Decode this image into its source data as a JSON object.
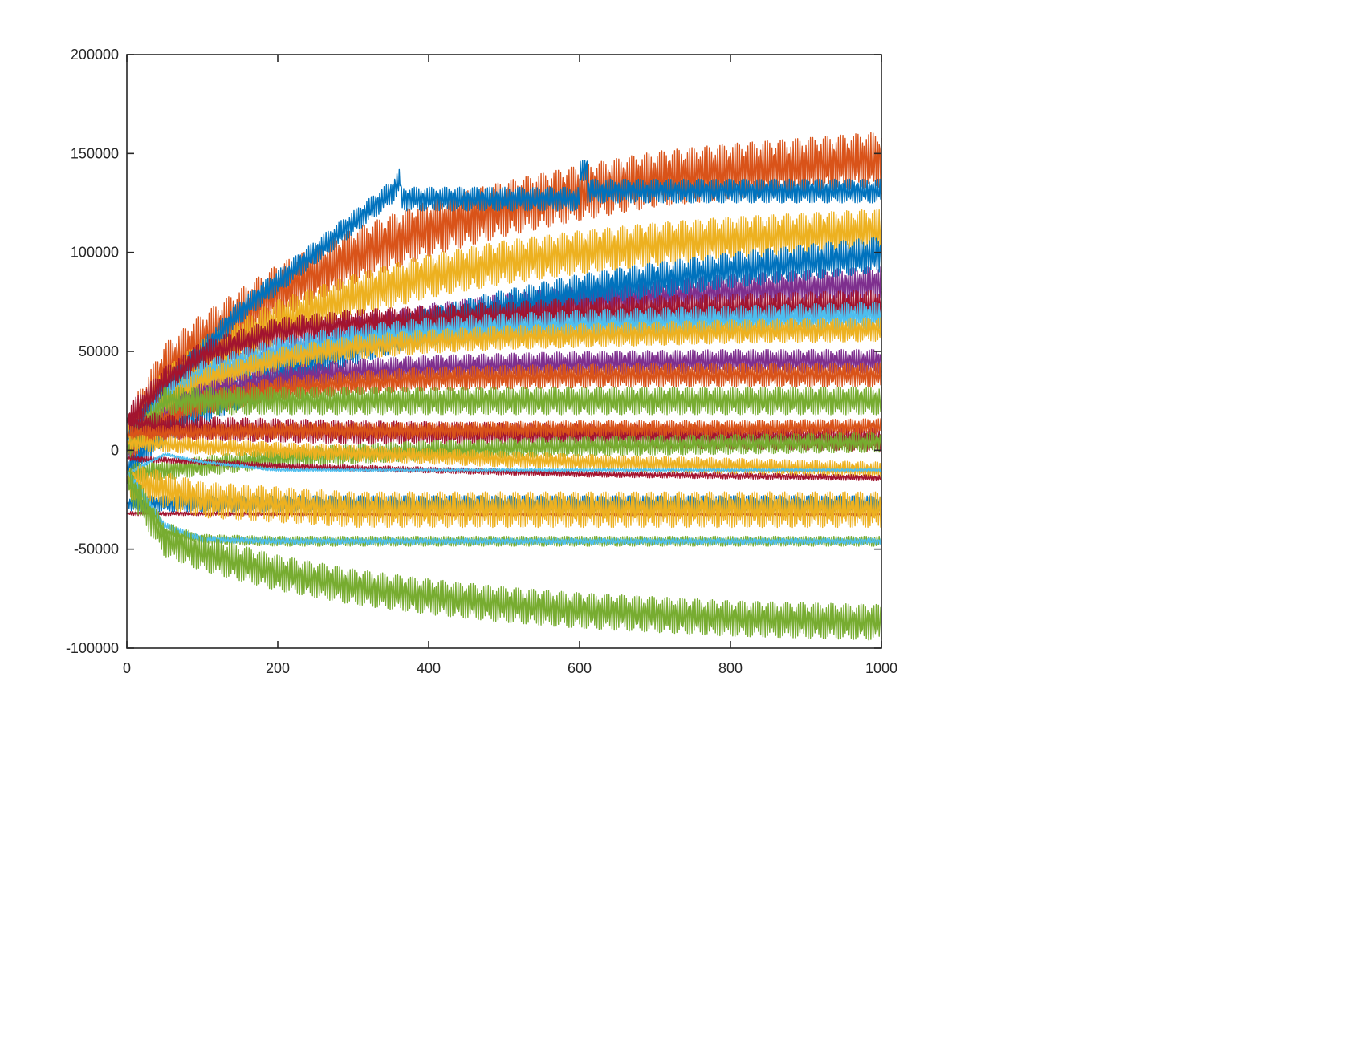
{
  "chart_data": {
    "type": "line",
    "title": "",
    "xlabel": "",
    "ylabel": "",
    "xlim": [
      0,
      1000
    ],
    "ylim": [
      -100000,
      200000
    ],
    "xticks": [
      0,
      200,
      400,
      600,
      800,
      1000
    ],
    "yticks": [
      -100000,
      -50000,
      0,
      50000,
      100000,
      150000,
      200000
    ],
    "x_tick_labels": [
      "0",
      "200",
      "400",
      "600",
      "800",
      "1000"
    ],
    "y_tick_labels": [
      "-100000",
      "-50000",
      "0",
      "50000",
      "100000",
      "150000",
      "200000"
    ],
    "grid": false,
    "legend": "none",
    "series": [
      {
        "color": "#D95319",
        "x": [
          0,
          50,
          100,
          200,
          300,
          400,
          500,
          600,
          700,
          800,
          900,
          1000
        ],
        "y": [
          5000,
          40000,
          55000,
          80000,
          98000,
          112000,
          122000,
          130000,
          137000,
          141000,
          144000,
          147000
        ],
        "amplitude": 14000
      },
      {
        "color": "#EDB120",
        "x": [
          0,
          50,
          100,
          200,
          300,
          400,
          500,
          600,
          700,
          800,
          900,
          1000
        ],
        "y": [
          5000,
          30000,
          45000,
          65000,
          78000,
          88000,
          95000,
          100000,
          104000,
          107000,
          109000,
          111000
        ],
        "amplitude": 11000
      },
      {
        "color": "#7E2F8E",
        "x": [
          0,
          50,
          100,
          200,
          300,
          400,
          500,
          600,
          700,
          800,
          900,
          1000
        ],
        "y": [
          2000,
          20000,
          32000,
          48000,
          58000,
          65000,
          70000,
          74000,
          77000,
          80000,
          82000,
          84000
        ],
        "amplitude": 9000
      },
      {
        "color": "#0072BD",
        "x": [
          0,
          50,
          100,
          200,
          300,
          400,
          500,
          600,
          700,
          800,
          900,
          1000
        ],
        "y": [
          -10000,
          12000,
          22000,
          38000,
          52000,
          63000,
          72000,
          80000,
          86000,
          91000,
          95000,
          99000
        ],
        "amplitude": 9000
      },
      {
        "color": "#0072BD",
        "x": [
          0,
          50,
          100,
          150,
          200,
          250,
          300,
          350,
          363,
          364,
          600,
          601,
          610,
          611,
          1000
        ],
        "y": [
          5000,
          30000,
          50000,
          70000,
          85000,
          100000,
          115000,
          130000,
          137000,
          127000,
          127000,
          140000,
          143000,
          131000,
          131000
        ],
        "amplitude": 6000
      },
      {
        "color": "#A2142F",
        "x": [
          0,
          50,
          100,
          200,
          300,
          400,
          500,
          600,
          700,
          800,
          900,
          1000
        ],
        "y": [
          15000,
          35000,
          48000,
          60000,
          64000,
          66000,
          68000,
          70000,
          71000,
          72000,
          73000,
          74000
        ],
        "amplitude": 7000
      },
      {
        "color": "#4DBEEE",
        "x": [
          0,
          50,
          100,
          200,
          300,
          400,
          500,
          600,
          700,
          800,
          900,
          1000
        ],
        "y": [
          0,
          25000,
          38000,
          50000,
          56000,
          60000,
          62000,
          64000,
          65000,
          66000,
          67000,
          68000
        ],
        "amplitude": 7000
      },
      {
        "color": "#EDB120",
        "x": [
          0,
          50,
          100,
          200,
          300,
          400,
          500,
          600,
          700,
          800,
          900,
          1000
        ],
        "y": [
          0,
          22000,
          35000,
          46000,
          52000,
          55000,
          57000,
          58000,
          59000,
          60000,
          60500,
          61000
        ],
        "amplitude": 6000
      },
      {
        "color": "#7E2F8E",
        "x": [
          0,
          50,
          100,
          200,
          300,
          400,
          500,
          600,
          700,
          800,
          900,
          1000
        ],
        "y": [
          0,
          18000,
          28000,
          36000,
          40000,
          42000,
          43000,
          44000,
          44500,
          45000,
          45000,
          45000
        ],
        "amplitude": 6000
      },
      {
        "color": "#D95319",
        "x": [
          0,
          50,
          100,
          200,
          300,
          400,
          500,
          600,
          700,
          800,
          900,
          1000
        ],
        "y": [
          0,
          15000,
          24000,
          31000,
          34000,
          36000,
          37000,
          37500,
          38000,
          38000,
          38000,
          38000
        ],
        "amplitude": 6000
      },
      {
        "color": "#77AC30",
        "x": [
          0,
          50,
          100,
          200,
          300,
          400,
          500,
          600,
          700,
          800,
          900,
          1000
        ],
        "y": [
          0,
          25000,
          25000,
          25000,
          25000,
          25000,
          25000,
          25000,
          25000,
          25000,
          25000,
          25000
        ],
        "amplitude": 7000
      },
      {
        "color": "#A2142F",
        "x": [
          0,
          50,
          100,
          200,
          300,
          400,
          500,
          600,
          700,
          800,
          900,
          1000
        ],
        "y": [
          15000,
          12000,
          11000,
          10000,
          9000,
          8500,
          8000,
          7500,
          7000,
          6500,
          6000,
          5500
        ],
        "amplitude": 6000
      },
      {
        "color": "#D95319",
        "x": [
          0,
          200,
          400,
          600,
          800,
          1000
        ],
        "y": [
          8000,
          10000,
          10000,
          11000,
          11000,
          12000
        ],
        "amplitude": 4000
      },
      {
        "color": "#77AC30",
        "x": [
          0,
          200,
          400,
          600,
          800,
          1000
        ],
        "y": [
          -12000,
          -4000,
          0,
          2000,
          3000,
          4000
        ],
        "amplitude": 5000
      },
      {
        "color": "#EDB120",
        "x": [
          0,
          200,
          400,
          600,
          800,
          1000
        ],
        "y": [
          4000,
          0,
          -3000,
          -6000,
          -8000,
          -10000
        ],
        "amplitude": 4000
      },
      {
        "color": "#A2142F",
        "x": [
          0,
          200,
          400,
          600,
          800,
          1000
        ],
        "y": [
          -4000,
          -8000,
          -10000,
          -12000,
          -13000,
          -14000
        ],
        "amplitude": 1500
      },
      {
        "color": "#4DBEEE",
        "x": [
          0,
          50,
          100,
          200,
          300,
          400,
          600,
          800,
          1000
        ],
        "y": [
          -12000,
          -2000,
          -6000,
          -10000,
          -10000,
          -10000,
          -10000,
          -10000,
          -10000
        ],
        "amplitude": 800
      },
      {
        "color": "#A2142F",
        "x": [
          0,
          100,
          1000
        ],
        "y": [
          -32000,
          -32000,
          -32000
        ],
        "amplitude": 1000
      },
      {
        "color": "#0072BD",
        "x": [
          0,
          100,
          1000
        ],
        "y": [
          -27000,
          -27000,
          -27000
        ],
        "amplitude": 4000
      },
      {
        "color": "#EDB120",
        "x": [
          0,
          100,
          300,
          500,
          700,
          1000
        ],
        "y": [
          -15000,
          -25000,
          -30000,
          -30000,
          -30000,
          -30000
        ],
        "amplitude": 9000
      },
      {
        "color": "#77AC30",
        "x": [
          0,
          50,
          100,
          200,
          400,
          600,
          800,
          1000
        ],
        "y": [
          -10000,
          -42000,
          -45000,
          -46000,
          -46000,
          -46000,
          -46000,
          -46000
        ],
        "amplitude": 2500
      },
      {
        "color": "#4DBEEE",
        "x": [
          0,
          50,
          100,
          200,
          400,
          600,
          800,
          1000
        ],
        "y": [
          -10000,
          -38000,
          -45000,
          -46000,
          -46000,
          -46000,
          -46000,
          -46000
        ],
        "amplitude": 1500
      },
      {
        "color": "#77AC30",
        "x": [
          0,
          50,
          100,
          200,
          300,
          400,
          500,
          600,
          700,
          800,
          900,
          1000
        ],
        "y": [
          -15000,
          -45000,
          -52000,
          -62000,
          -69000,
          -74000,
          -78000,
          -81000,
          -83000,
          -85000,
          -86000,
          -87000
        ],
        "amplitude": 9000
      }
    ]
  }
}
